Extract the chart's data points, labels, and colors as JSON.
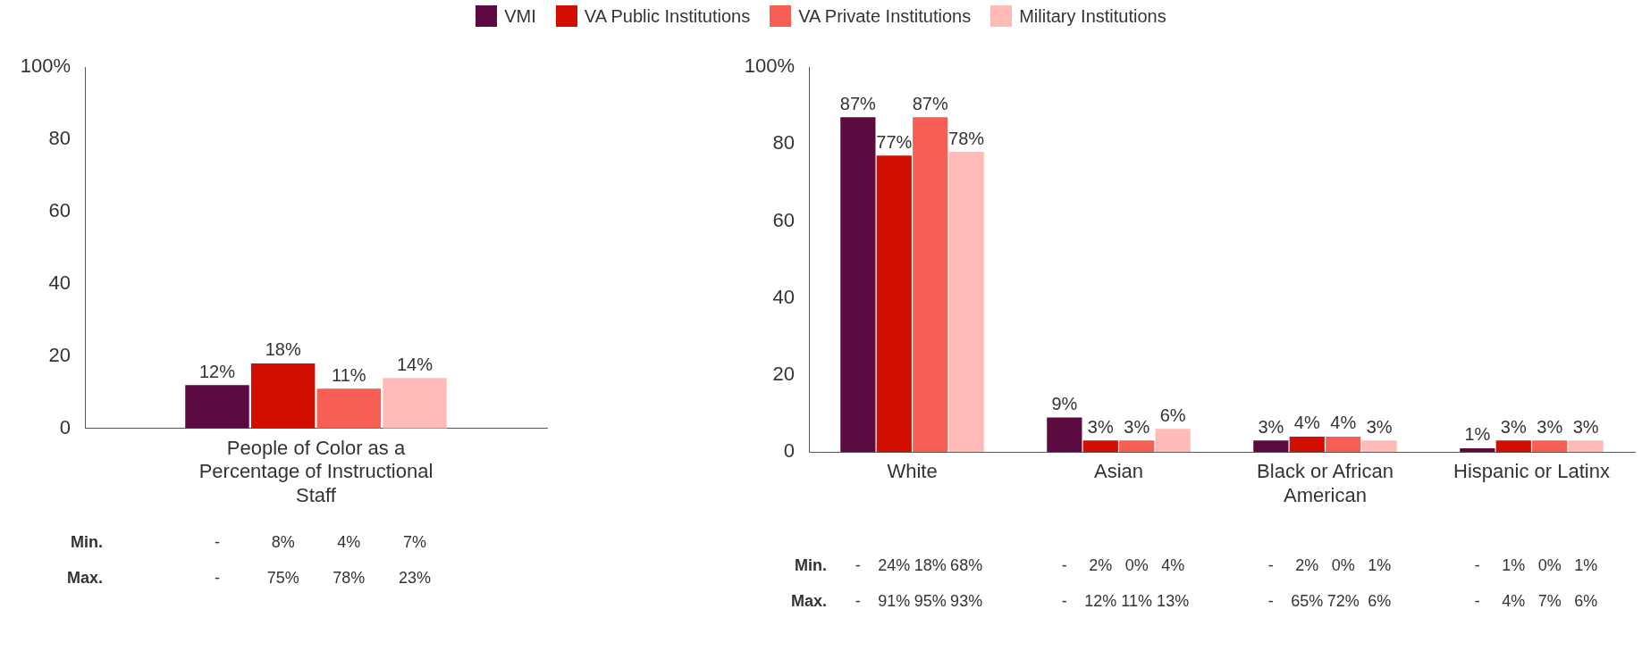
{
  "chart_data": [
    {
      "type": "bar",
      "categories": [
        "People of Color as a Percentage of Instructional Staff"
      ],
      "series": [
        {
          "name": "VMI",
          "color": "#5c0a3f",
          "values": [
            12
          ],
          "value_labels": [
            "12%"
          ]
        },
        {
          "name": "VA Public Institutions",
          "color": "#d10e00",
          "values": [
            18
          ],
          "value_labels": [
            "18%"
          ]
        },
        {
          "name": "VA Private Institutions",
          "color": "#f75f55",
          "values": [
            11
          ],
          "value_labels": [
            "11%"
          ]
        },
        {
          "name": "Military Institutions",
          "color": "#ffbbb8",
          "values": [
            14
          ],
          "value_labels": [
            "14%"
          ]
        }
      ],
      "ylim": [
        0,
        100
      ],
      "yticks": [
        0,
        20,
        40,
        60,
        80,
        {
          "value": 100,
          "label": "100%"
        }
      ],
      "legend": "top",
      "annotations": [
        "Min.",
        "-",
        "8%",
        "4%",
        "7%",
        "Max.",
        "-",
        "75%",
        "78%",
        "23%"
      ]
    },
    {
      "type": "bar",
      "categories": [
        "White",
        "Asian",
        "Black or African American",
        "Hispanic or Latinx"
      ],
      "series": [
        {
          "color": "#5c0a3f",
          "values": [
            87,
            9,
            3,
            1
          ],
          "value_labels": [
            "87%",
            "9%",
            "3%",
            "1%"
          ]
        },
        {
          "color": "#d10e00",
          "values": [
            77,
            3,
            4,
            3
          ],
          "value_labels": [
            "77%",
            "3%",
            "4%",
            "3%"
          ]
        },
        {
          "color": "#f75f55",
          "values": [
            87,
            3,
            4,
            3
          ],
          "value_labels": [
            "87%",
            "3%",
            "4%",
            "3%"
          ]
        },
        {
          "color": "#ffbbb8",
          "values": [
            78,
            6,
            3,
            3
          ],
          "value_labels": [
            "78%",
            "6%",
            "3%",
            "3%"
          ]
        }
      ],
      "ylim": [
        0,
        100
      ],
      "yticks": [
        0,
        20,
        40,
        60,
        80,
        {
          "value": 100,
          "label": "100%"
        }
      ],
      "annotations": [
        "Min.",
        "-",
        "24%",
        "18%",
        "68%",
        "-",
        "2%",
        "0%",
        "4%",
        "-",
        "2%",
        "0%",
        "1%",
        "-",
        "1%",
        "0%",
        "1%",
        "Max.",
        "-",
        "91%",
        "95%",
        "93%",
        "-",
        "12%",
        "11%",
        "13%",
        "-",
        "65%",
        "72%",
        "6%",
        "-",
        "4%",
        "7%",
        "6%"
      ]
    }
  ]
}
